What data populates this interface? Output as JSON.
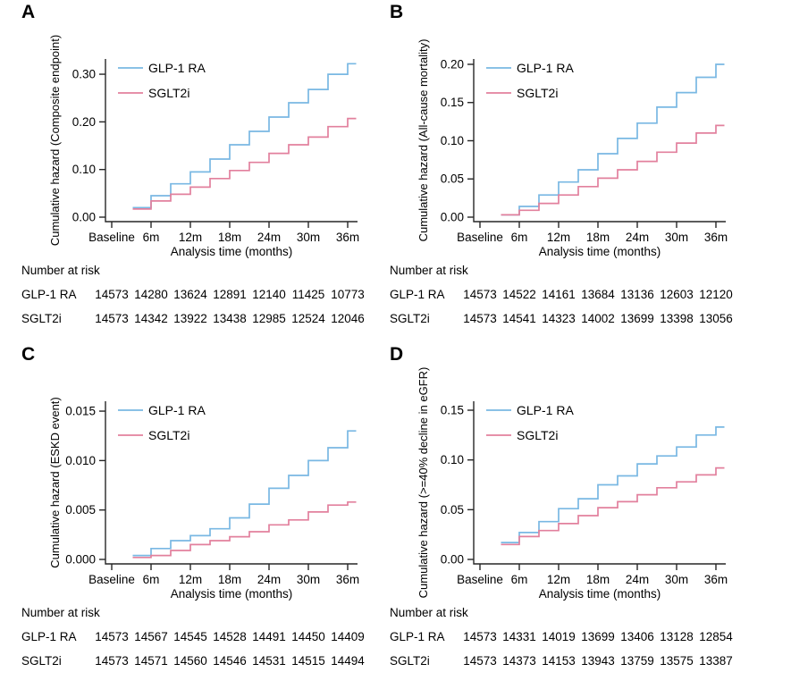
{
  "colors": {
    "glp1_ra_line": "#79B8E3",
    "sglt2i_line": "#E2809D",
    "axis": "#262626",
    "text": "#000000",
    "background": "#FFFFFF"
  },
  "chart_data": [
    {
      "panel": "A",
      "type": "line",
      "step": true,
      "title": "",
      "ylabel": "Cumulative hazard (Composite endpoint)",
      "xlabel": "Analysis time (months)",
      "xtick_labels": [
        "Baseline",
        "6m",
        "12m",
        "18m",
        "24m",
        "30m",
        "36m"
      ],
      "xtick_months": [
        0,
        6,
        12,
        18,
        24,
        30,
        36
      ],
      "ytick_labels": [
        "0.00",
        "0.10",
        "0.20",
        "0.30"
      ],
      "ytick_values": [
        0,
        0.1,
        0.2,
        0.3
      ],
      "y_axis_max": 0.332,
      "curve_start_month": 3.2,
      "curve_end_month": 37.3,
      "step_months": [
        6,
        9,
        12,
        15,
        18,
        21,
        24,
        27,
        30,
        33,
        36
      ],
      "legend_position": "top-left-inside",
      "series": [
        {
          "name": "GLP-1 RA",
          "color": "#79B8E3",
          "levels": [
            0.02,
            0.045,
            0.07,
            0.095,
            0.122,
            0.152,
            0.18,
            0.21,
            0.24,
            0.268,
            0.3,
            0.322
          ]
        },
        {
          "name": "SGLT2i",
          "color": "#E2809D",
          "levels": [
            0.017,
            0.034,
            0.048,
            0.063,
            0.081,
            0.098,
            0.115,
            0.134,
            0.152,
            0.168,
            0.19,
            0.207
          ]
        }
      ],
      "risk_table": {
        "title": "Number at risk",
        "rows": [
          {
            "label": "GLP-1 RA",
            "values": [
              14573,
              14280,
              13624,
              12891,
              12140,
              11425,
              10773
            ]
          },
          {
            "label": "SGLT2i",
            "values": [
              14573,
              14342,
              13922,
              13438,
              12985,
              12524,
              12046
            ]
          }
        ]
      }
    },
    {
      "panel": "B",
      "type": "line",
      "step": true,
      "title": "",
      "ylabel": "Cumulative hazard (All-cause mortality)",
      "xlabel": "Analysis time (months)",
      "xtick_labels": [
        "Baseline",
        "6m",
        "12m",
        "18m",
        "24m",
        "30m",
        "36m"
      ],
      "xtick_months": [
        0,
        6,
        12,
        18,
        24,
        30,
        36
      ],
      "ytick_labels": [
        "0.00",
        "0.05",
        "0.10",
        "0.15",
        "0.20"
      ],
      "ytick_values": [
        0,
        0.05,
        0.1,
        0.15,
        0.2
      ],
      "y_axis_max": 0.207,
      "curve_start_month": 3.2,
      "curve_end_month": 37.3,
      "step_months": [
        6,
        9,
        12,
        15,
        18,
        21,
        24,
        27,
        30,
        33,
        36
      ],
      "legend_position": "top-left-inside",
      "series": [
        {
          "name": "GLP-1 RA",
          "color": "#79B8E3",
          "levels": [
            0.003,
            0.014,
            0.029,
            0.046,
            0.062,
            0.083,
            0.103,
            0.123,
            0.144,
            0.163,
            0.183,
            0.2
          ]
        },
        {
          "name": "SGLT2i",
          "color": "#E2809D",
          "levels": [
            0.003,
            0.009,
            0.018,
            0.029,
            0.04,
            0.051,
            0.062,
            0.073,
            0.085,
            0.097,
            0.11,
            0.12
          ]
        }
      ],
      "risk_table": {
        "title": "Number at risk",
        "rows": [
          {
            "label": "GLP-1 RA",
            "values": [
              14573,
              14522,
              14161,
              13684,
              13136,
              12603,
              12120
            ]
          },
          {
            "label": "SGLT2i",
            "values": [
              14573,
              14541,
              14323,
              14002,
              13699,
              13398,
              13056
            ]
          }
        ]
      }
    },
    {
      "panel": "C",
      "type": "line",
      "step": true,
      "title": "",
      "ylabel": "Cumulative hazard (ESKD event)",
      "xlabel": "Analysis time (months)",
      "xtick_labels": [
        "Baseline",
        "6m",
        "12m",
        "18m",
        "24m",
        "30m",
        "36m"
      ],
      "xtick_months": [
        0,
        6,
        12,
        18,
        24,
        30,
        36
      ],
      "ytick_labels": [
        "0.000",
        "0.005",
        "0.010",
        "0.015"
      ],
      "ytick_values": [
        0,
        0.005,
        0.01,
        0.015
      ],
      "y_axis_max": 0.016,
      "curve_start_month": 3.2,
      "curve_end_month": 37.3,
      "step_months": [
        6,
        9,
        12,
        15,
        18,
        21,
        24,
        27,
        30,
        33,
        36
      ],
      "legend_position": "top-left-inside",
      "series": [
        {
          "name": "GLP-1 RA",
          "color": "#79B8E3",
          "levels": [
            0.0004,
            0.0011,
            0.0019,
            0.0024,
            0.0031,
            0.0042,
            0.0056,
            0.0072,
            0.0085,
            0.01,
            0.0113,
            0.013
          ]
        },
        {
          "name": "SGLT2i",
          "color": "#E2809D",
          "levels": [
            0.0002,
            0.0004,
            0.0009,
            0.0015,
            0.0019,
            0.0023,
            0.0028,
            0.0035,
            0.004,
            0.0048,
            0.0055,
            0.0058
          ]
        }
      ],
      "risk_table": {
        "title": "Number at risk",
        "rows": [
          {
            "label": "GLP-1 RA",
            "values": [
              14573,
              14567,
              14545,
              14528,
              14491,
              14450,
              14409
            ]
          },
          {
            "label": "SGLT2i",
            "values": [
              14573,
              14571,
              14560,
              14546,
              14531,
              14515,
              14494
            ]
          }
        ]
      }
    },
    {
      "panel": "D",
      "type": "line",
      "step": true,
      "title": "",
      "ylabel": "Cumulative hazard (>=40% decline in eGFR)",
      "xlabel": "Analysis time (months)",
      "xtick_labels": [
        "Baseline",
        "6m",
        "12m",
        "18m",
        "24m",
        "30m",
        "36m"
      ],
      "xtick_months": [
        0,
        6,
        12,
        18,
        24,
        30,
        36
      ],
      "ytick_labels": [
        "0.00",
        "0.05",
        "0.10",
        "0.15"
      ],
      "ytick_values": [
        0,
        0.05,
        0.1,
        0.15
      ],
      "y_axis_max": 0.159,
      "curve_start_month": 3.2,
      "curve_end_month": 37.3,
      "step_months": [
        6,
        9,
        12,
        15,
        18,
        21,
        24,
        27,
        30,
        33,
        36
      ],
      "legend_position": "top-left-inside",
      "series": [
        {
          "name": "GLP-1 RA",
          "color": "#79B8E3",
          "levels": [
            0.017,
            0.027,
            0.038,
            0.051,
            0.061,
            0.075,
            0.084,
            0.096,
            0.104,
            0.113,
            0.125,
            0.133
          ]
        },
        {
          "name": "SGLT2i",
          "color": "#E2809D",
          "levels": [
            0.015,
            0.023,
            0.029,
            0.036,
            0.044,
            0.052,
            0.058,
            0.065,
            0.072,
            0.078,
            0.085,
            0.092
          ]
        }
      ],
      "risk_table": {
        "title": "Number at risk",
        "rows": [
          {
            "label": "GLP-1 RA",
            "values": [
              14573,
              14331,
              14019,
              13699,
              13406,
              13128,
              12854
            ]
          },
          {
            "label": "SGLT2i",
            "values": [
              14573,
              14373,
              14153,
              13943,
              13759,
              13575,
              13387
            ]
          }
        ]
      }
    }
  ]
}
